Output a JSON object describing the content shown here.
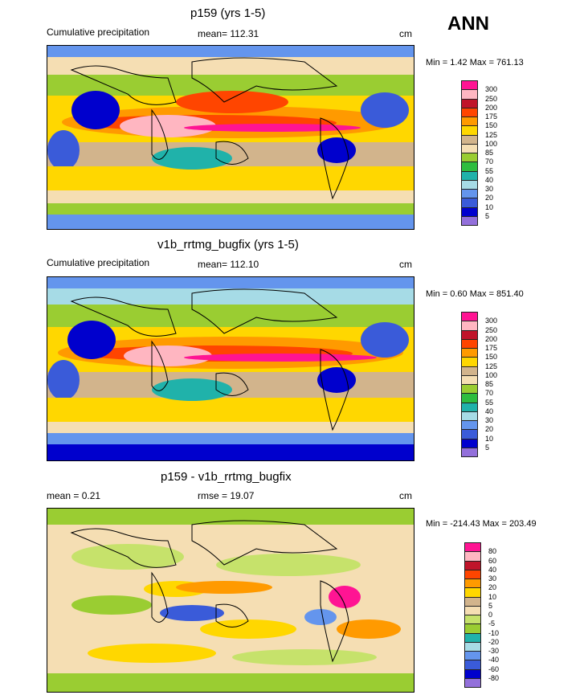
{
  "season": "ANN",
  "panels": [
    {
      "title": "p159 (yrs 1-5)",
      "left_label": "Cumulative precipitation",
      "center_label": "mean= 112.31",
      "units": "cm",
      "stats": "Min =   1.42 Max = 761.13",
      "colorbar": {
        "labels": [
          "300",
          "250",
          "200",
          "175",
          "150",
          "125",
          "100",
          "85",
          "70",
          "55",
          "40",
          "30",
          "20",
          "10",
          "5"
        ],
        "colors": [
          "#ff1493",
          "#ffb6c1",
          "#c0142a",
          "#ff4500",
          "#ff9a00",
          "#ffd700",
          "#d2b48c",
          "#f5deb3",
          "#9acd32",
          "#2ebd3f",
          "#20b2aa",
          "#a6dbe6",
          "#6495ed",
          "#3a5bd9",
          "#0000cd",
          "#9370db"
        ]
      }
    },
    {
      "title": "v1b_rrtmg_bugfix (yrs 1-5)",
      "left_label": "Cumulative precipitation",
      "center_label": "mean= 112.10",
      "units": "cm",
      "stats": "Min =   0.60 Max = 851.40",
      "colorbar": {
        "labels": [
          "300",
          "250",
          "200",
          "175",
          "150",
          "125",
          "100",
          "85",
          "70",
          "55",
          "40",
          "30",
          "20",
          "10",
          "5"
        ],
        "colors": [
          "#ff1493",
          "#ffb6c1",
          "#c0142a",
          "#ff4500",
          "#ff9a00",
          "#ffd700",
          "#d2b48c",
          "#f5deb3",
          "#9acd32",
          "#2ebd3f",
          "#20b2aa",
          "#a6dbe6",
          "#6495ed",
          "#3a5bd9",
          "#0000cd",
          "#9370db"
        ]
      }
    },
    {
      "title": "p159 - v1b_rrtmg_bugfix",
      "left_label": "mean =   0.21",
      "center_label": "rmse =  19.07",
      "units": "cm",
      "stats": "Min = -214.43 Max = 203.49",
      "colorbar": {
        "labels": [
          "80",
          "60",
          "40",
          "30",
          "20",
          "10",
          "5",
          "0",
          "-5",
          "-10",
          "-20",
          "-30",
          "-40",
          "-60",
          "-80"
        ],
        "colors": [
          "#ff1493",
          "#ffb6c1",
          "#c0142a",
          "#ff4500",
          "#ff9a00",
          "#ffd700",
          "#d2b48c",
          "#f5deb3",
          "#c6e26b",
          "#9acd32",
          "#20b2aa",
          "#a6dbe6",
          "#6495ed",
          "#3a5bd9",
          "#0000cd",
          "#9370db"
        ]
      }
    }
  ]
}
